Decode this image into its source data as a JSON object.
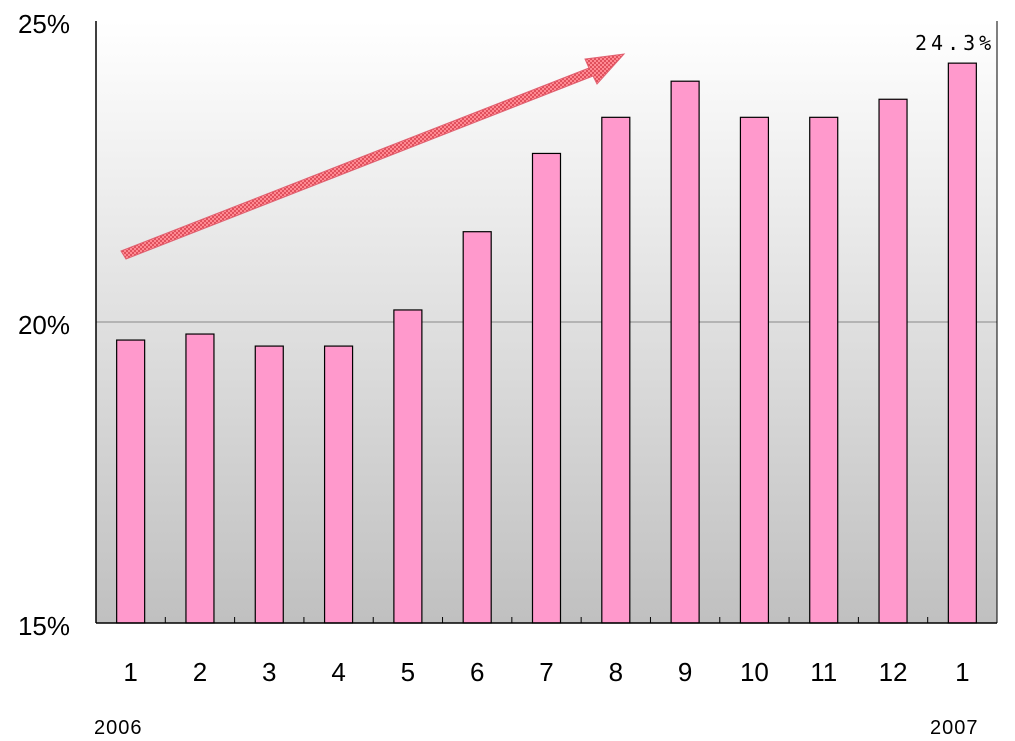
{
  "chart_data": {
    "type": "bar",
    "categories": [
      "1",
      "2",
      "3",
      "4",
      "5",
      "6",
      "7",
      "8",
      "9",
      "10",
      "11",
      "12",
      "1"
    ],
    "values": [
      19.7,
      19.8,
      19.6,
      19.6,
      20.2,
      21.5,
      22.8,
      23.4,
      24.0,
      23.4,
      23.4,
      23.7,
      24.3
    ],
    "y_ticks": [
      "15%",
      "20%",
      "25%"
    ],
    "ylim": [
      15,
      25
    ],
    "year_labels": {
      "start": "2006",
      "end": "2007"
    },
    "data_label": {
      "index": 12,
      "text": "24.3%"
    },
    "grid": "horizontal at 20%",
    "colors": {
      "bar": "#ff99cc",
      "arrow": "#f06070",
      "grid": "#888888"
    },
    "annotation": "upward-trend-arrow"
  }
}
